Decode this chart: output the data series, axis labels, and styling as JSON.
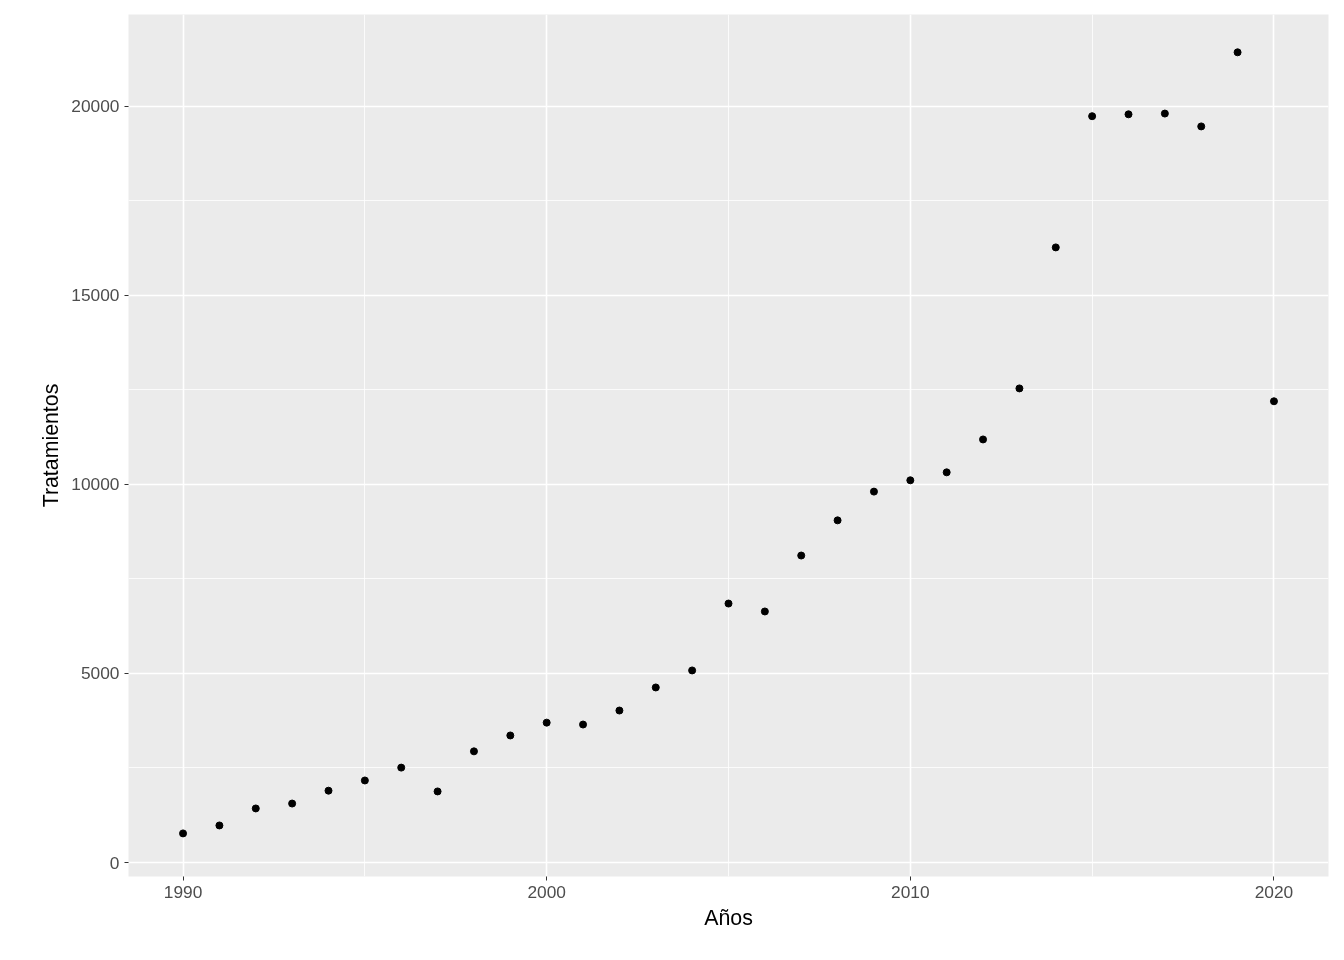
{
  "chart_data": {
    "type": "scatter",
    "xlabel": "Años",
    "ylabel": "Tratamientos",
    "x": [
      1990,
      1991,
      1992,
      1993,
      1994,
      1995,
      1996,
      1997,
      1998,
      1999,
      2000,
      2001,
      2002,
      2003,
      2004,
      2005,
      2006,
      2007,
      2008,
      2009,
      2010,
      2011,
      2012,
      2013,
      2014,
      2015,
      2016,
      2017,
      2018,
      2019,
      2020
    ],
    "values": [
      770,
      980,
      1430,
      1560,
      1900,
      2170,
      2510,
      1880,
      2940,
      3360,
      3700,
      3650,
      4020,
      4630,
      5080,
      6850,
      6640,
      8120,
      9050,
      9810,
      10110,
      10320,
      11190,
      12540,
      16270,
      19740,
      19790,
      19810,
      19470,
      21430,
      12200
    ],
    "color": "#000000",
    "marker": "circle",
    "xlim": [
      1988.5,
      2021.5
    ],
    "xticks": [
      1990,
      2000,
      2010,
      2020
    ],
    "ylim": [
      -370,
      22430
    ],
    "yticks": [
      0,
      5000,
      10000,
      15000,
      20000
    ],
    "grid": true
  }
}
